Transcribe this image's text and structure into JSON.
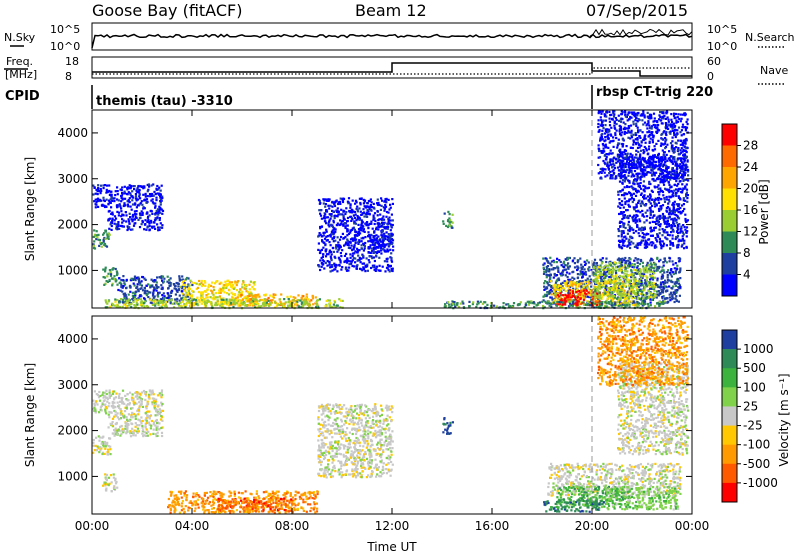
{
  "header": {
    "station": "Goose Bay (fitACF)",
    "beam": "Beam 12",
    "date": "07/Sep/2015"
  },
  "top_panel": {
    "left_label": "N.Sky",
    "right_label": "N.Search",
    "left_ticks": [
      "10^5",
      "10^0"
    ],
    "right_ticks": [
      "10^5",
      "10^0"
    ]
  },
  "freq_panel": {
    "left_label_line1": "Freq.",
    "left_label_line2": "[MHz]",
    "right_label": "Nave",
    "left_ticks": [
      "18",
      "8"
    ],
    "right_ticks": [
      "60",
      "0"
    ]
  },
  "cpid": {
    "label": "CPID",
    "modes": [
      "themis (tau) -3310",
      "rbsp CT-trig 220"
    ]
  },
  "chart_data": [
    {
      "type": "heatmap",
      "title": "",
      "xlabel": "",
      "ylabel": "Slant Range [km]",
      "xlim": [
        0,
        24
      ],
      "ylim": [
        180,
        4500
      ],
      "y_ticks": [
        1000,
        2000,
        3000,
        4000
      ],
      "colorbar": {
        "label": "Power [dB]",
        "ticks": [
          "28",
          "24",
          "20",
          "16",
          "12",
          "8",
          "4"
        ],
        "colors": [
          "#ff0000",
          "#ff6a00",
          "#ffa500",
          "#ffe000",
          "#9acd32",
          "#2e8b57",
          "#1e3fa0",
          "#0000ff"
        ]
      },
      "regions": [
        {
          "t": [
            0.0,
            0.6
          ],
          "r": [
            2400,
            2900
          ],
          "c": 7
        },
        {
          "t": [
            0.0,
            0.7
          ],
          "r": [
            1500,
            1900
          ],
          "c": 5
        },
        {
          "t": [
            0.6,
            2.8
          ],
          "r": [
            1900,
            2900
          ],
          "c": 7
        },
        {
          "t": [
            0.4,
            1.0
          ],
          "r": [
            700,
            1100
          ],
          "c": 5
        },
        {
          "t": [
            1.0,
            4.0
          ],
          "r": [
            300,
            900
          ],
          "c": 6
        },
        {
          "t": [
            3.5,
            6.5
          ],
          "r": [
            250,
            800
          ],
          "c": 3
        },
        {
          "t": [
            5.5,
            9.0
          ],
          "r": [
            250,
            500
          ],
          "c": 2
        },
        {
          "t": [
            0.5,
            10.0
          ],
          "r": [
            200,
            400
          ],
          "c": 4
        },
        {
          "t": [
            9.0,
            12.0
          ],
          "r": [
            1000,
            2600
          ],
          "c": 7
        },
        {
          "t": [
            11.0,
            12.0
          ],
          "r": [
            1400,
            1800
          ],
          "c": 7
        },
        {
          "t": [
            14.0,
            14.4
          ],
          "r": [
            1950,
            2300
          ],
          "c": 5
        },
        {
          "t": [
            18.0,
            23.5
          ],
          "r": [
            300,
            1300
          ],
          "c": 6
        },
        {
          "t": [
            18.3,
            21.8
          ],
          "r": [
            260,
            800
          ],
          "c": 3
        },
        {
          "t": [
            18.5,
            20.3
          ],
          "r": [
            250,
            600
          ],
          "c": 0
        },
        {
          "t": [
            20.0,
            22.5
          ],
          "r": [
            400,
            1200
          ],
          "c": 4
        },
        {
          "t": [
            21.0,
            23.8
          ],
          "r": [
            1500,
            3500
          ],
          "c": 7
        },
        {
          "t": [
            20.2,
            23.8
          ],
          "r": [
            3000,
            4500
          ],
          "c": 7
        },
        {
          "t": [
            14.0,
            23.0
          ],
          "r": [
            200,
            350
          ],
          "c": 5
        }
      ]
    },
    {
      "type": "heatmap",
      "title": "",
      "xlabel": "Time UT",
      "ylabel": "Slant Range [km]",
      "xlim": [
        0,
        24
      ],
      "ylim": [
        180,
        4500
      ],
      "x_ticks": [
        "00:00",
        "04:00",
        "08:00",
        "12:00",
        "16:00",
        "20:00",
        "00:00"
      ],
      "y_ticks": [
        1000,
        2000,
        3000,
        4000
      ],
      "colorbar": {
        "label": "Velocity [m s⁻¹]",
        "ticks": [
          "1000",
          "500",
          "100",
          "25",
          "-25",
          "-100",
          "-500",
          "-1000"
        ],
        "colors": [
          "#1e3fa0",
          "#2e8b57",
          "#3cb33c",
          "#7fd24a",
          "#c8c8c8",
          "#ffc800",
          "#ff9a00",
          "#ff5a00",
          "#ff0000"
        ]
      },
      "regions": [
        {
          "t": [
            0.0,
            0.6
          ],
          "r": [
            2400,
            2900
          ],
          "c": 4
        },
        {
          "t": [
            0.0,
            0.7
          ],
          "r": [
            1500,
            1900
          ],
          "c": 4
        },
        {
          "t": [
            0.6,
            2.8
          ],
          "r": [
            1900,
            2900
          ],
          "c": 4
        },
        {
          "t": [
            0.4,
            1.0
          ],
          "r": [
            700,
            1100
          ],
          "c": 4
        },
        {
          "t": [
            3.0,
            9.0
          ],
          "r": [
            230,
            700
          ],
          "c": 6
        },
        {
          "t": [
            5.0,
            8.0
          ],
          "r": [
            250,
            550
          ],
          "c": 7
        },
        {
          "t": [
            9.0,
            12.0
          ],
          "r": [
            1000,
            2600
          ],
          "c": 4
        },
        {
          "t": [
            14.0,
            14.4
          ],
          "r": [
            1950,
            2300
          ],
          "c": 0
        },
        {
          "t": [
            18.2,
            23.5
          ],
          "r": [
            600,
            1300
          ],
          "c": 4
        },
        {
          "t": [
            18.5,
            21.5
          ],
          "r": [
            350,
            800
          ],
          "c": 2
        },
        {
          "t": [
            18.0,
            20.5
          ],
          "r": [
            250,
            500
          ],
          "c": 1
        },
        {
          "t": [
            20.5,
            23.5
          ],
          "r": [
            300,
            800
          ],
          "c": 3
        },
        {
          "t": [
            21.0,
            23.8
          ],
          "r": [
            1500,
            3500
          ],
          "c": 4
        },
        {
          "t": [
            20.2,
            23.8
          ],
          "r": [
            3000,
            4500
          ],
          "c": 6
        }
      ]
    }
  ]
}
